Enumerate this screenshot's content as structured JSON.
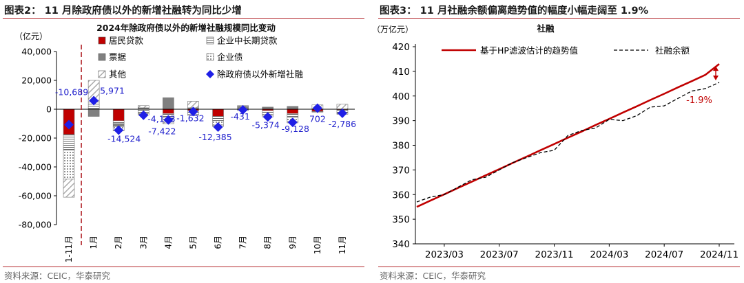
{
  "left_panel": {
    "title": "图表2：  11 月除政府债以外的新增社融转为同比少增",
    "source": "资料来源：CEIC，华泰研究"
  },
  "right_panel": {
    "title": "图表3：  11 月社融余额偏离趋势值的幅度小幅走阔至 1.9%",
    "source": "资料来源：CEIC，华泰研究"
  },
  "colors": {
    "frame_red": "#b3282d",
    "resident_loans": "#c00000",
    "bills": "#808080",
    "diamond": "#1f1fe6",
    "label_blue": "#1f1fcc",
    "hp_trend": "#c00000",
    "tsf_line": "#000000"
  },
  "chart_data": [
    {
      "type": "bar",
      "stacked": true,
      "title": "2024年除政府债以外的新增社融规模同比变动",
      "ylabel": "（亿元）",
      "ylim": [
        -80000,
        40000
      ],
      "yticks": [
        40000,
        20000,
        0,
        -20000,
        -40000,
        -60000,
        -80000
      ],
      "ytick_labels": [
        "40,000",
        "20,000",
        "0",
        "-20,000",
        "-40,000",
        "-60,000",
        "-80,000"
      ],
      "categories": [
        "1-11月",
        "1月",
        "2月",
        "3月",
        "4月",
        "5月",
        "6月",
        "7月",
        "8月",
        "9月",
        "10月",
        "11月"
      ],
      "series": [
        {
          "name": "居民贷款",
          "pattern": "solid-red",
          "values": [
            -17500,
            0,
            -8000,
            0,
            -3000,
            -1000,
            -5000,
            0,
            -1000,
            -3000,
            -1500,
            -500
          ]
        },
        {
          "name": "企业中长期贷款",
          "pattern": "hatch-horizontal",
          "values": [
            -11000,
            5000,
            -2000,
            -3000,
            -3000,
            -2500,
            -3000,
            -300,
            -2500,
            -3000,
            -300,
            -2000
          ]
        },
        {
          "name": "票据",
          "pattern": "solid-gray",
          "values": [
            0,
            -5000,
            -2000,
            1000,
            8000,
            1000,
            0,
            2000,
            1500,
            2000,
            0,
            0
          ]
        },
        {
          "name": "企业债",
          "pattern": "dotted",
          "values": [
            -20000,
            0,
            -2500,
            -1000,
            -3000,
            -800,
            -3000,
            -600,
            -800,
            -2500,
            -200,
            -1000
          ]
        },
        {
          "name": "其他",
          "pattern": "hatch-diagonal",
          "values": [
            -12500,
            15000,
            -500,
            1500,
            -1000,
            4500,
            -1000,
            500,
            -1000,
            -1000,
            3000,
            3500
          ]
        }
      ],
      "total_series": {
        "name": "除政府债以外新增社融",
        "marker": "diamond",
        "values": [
          -10689,
          5971,
          -14524,
          -4143,
          -7422,
          -1632,
          -12385,
          -431,
          -5374,
          -9128,
          702,
          -2786
        ],
        "labels": [
          "-10,689",
          "5,971",
          "-14,524",
          "-4,143",
          "-7,422",
          "-1,632",
          "-12,385",
          "-431",
          "-5,374",
          "-9,128",
          "702",
          "-2,786"
        ]
      },
      "legend": [
        {
          "label": "居民贷款",
          "key": "resident"
        },
        {
          "label": "企业中长期贷款",
          "key": "corp"
        },
        {
          "label": "票据",
          "key": "bills"
        },
        {
          "label": "企业债",
          "key": "bonds"
        },
        {
          "label": "其他",
          "key": "other"
        },
        {
          "label": "除政府债以外新增社融",
          "key": "diamond"
        }
      ],
      "divider_after_category": "1-11月"
    },
    {
      "type": "line",
      "title": "社融",
      "ylabel": "（万亿元）",
      "ylim": [
        340,
        420
      ],
      "yticks": [
        340,
        350,
        360,
        370,
        380,
        390,
        400,
        410,
        420
      ],
      "xtick_labels": [
        "2023/03",
        "2023/07",
        "2023/11",
        "2024/03",
        "2024/07",
        "2024/11"
      ],
      "x": [
        "2023/01",
        "2023/02",
        "2023/03",
        "2023/04",
        "2023/05",
        "2023/06",
        "2023/07",
        "2023/08",
        "2023/09",
        "2023/10",
        "2023/11",
        "2023/12",
        "2024/01",
        "2024/02",
        "2024/03",
        "2024/04",
        "2024/05",
        "2024/06",
        "2024/07",
        "2024/08",
        "2024/09",
        "2024/10",
        "2024/11"
      ],
      "series": [
        {
          "name": "基于HP滤波估计的趋势值",
          "style": "solid-red",
          "values": [
            355.0,
            357.6,
            360.1,
            362.7,
            365.2,
            367.8,
            370.3,
            372.9,
            375.4,
            378.0,
            380.5,
            383.1,
            385.6,
            388.2,
            390.7,
            393.3,
            395.8,
            398.4,
            400.9,
            403.5,
            406.0,
            408.6,
            413.0
          ]
        },
        {
          "name": "社融余额",
          "style": "dashed-black",
          "values": [
            357.0,
            359.0,
            360.0,
            363.0,
            366.0,
            367.0,
            370.0,
            373.0,
            375.0,
            377.0,
            378.0,
            384.0,
            386.0,
            387.0,
            390.5,
            390.0,
            392.0,
            395.5,
            396.0,
            399.0,
            402.0,
            403.0,
            405.5
          ]
        }
      ],
      "annotation": {
        "text": "-1.9%",
        "at": "2024/11"
      }
    }
  ]
}
